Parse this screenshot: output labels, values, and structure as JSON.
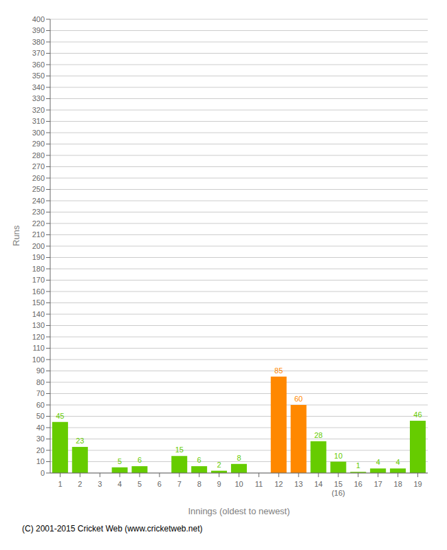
{
  "chart_data": {
    "type": "bar",
    "xlabel": "Innings (oldest to newest)",
    "ylabel": "Runs",
    "categories": [
      "1",
      "2",
      "3",
      "4",
      "5",
      "6",
      "7",
      "8",
      "9",
      "10",
      "11",
      "12",
      "13",
      "14",
      "15\n(16)",
      "16",
      "17",
      "18",
      "19"
    ],
    "values": [
      45,
      23,
      0,
      5,
      6,
      0,
      15,
      6,
      2,
      8,
      0,
      85,
      60,
      28,
      10,
      1,
      4,
      4,
      46
    ],
    "colors": [
      "#66cc00",
      "#66cc00",
      "#66cc00",
      "#66cc00",
      "#66cc00",
      "#66cc00",
      "#66cc00",
      "#66cc00",
      "#66cc00",
      "#66cc00",
      "#66cc00",
      "#ff8800",
      "#ff8800",
      "#66cc00",
      "#66cc00",
      "#66cc00",
      "#66cc00",
      "#66cc00",
      "#66cc00"
    ],
    "ylim": [
      0,
      400
    ],
    "yticks": [
      0,
      10,
      20,
      30,
      40,
      50,
      60,
      70,
      80,
      90,
      100,
      110,
      120,
      130,
      140,
      150,
      160,
      170,
      180,
      190,
      200,
      210,
      220,
      230,
      240,
      250,
      260,
      270,
      280,
      290,
      300,
      310,
      320,
      330,
      340,
      350,
      360,
      370,
      380,
      390,
      400
    ],
    "grid": true,
    "data_labels": true,
    "annotations": [
      "(C) 2001-2015 Cricket Web (www.cricketweb.net)"
    ]
  }
}
